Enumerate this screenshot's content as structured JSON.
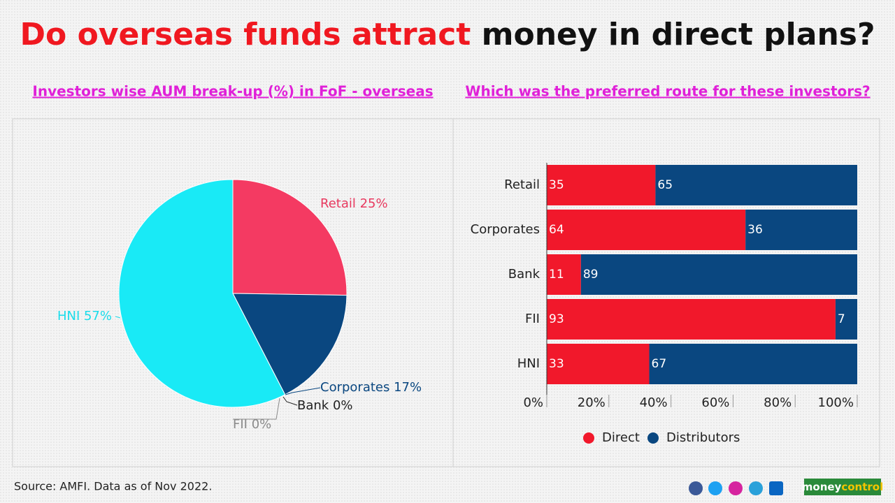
{
  "header": {
    "title_highlight": "Do overseas funds attract",
    "title_rest": "money in direct plans?"
  },
  "chart_data": [
    {
      "type": "pie",
      "subtitle": "Investors wise AUM break-up (%) in FoF - overseas",
      "categories": [
        "Retail",
        "Corporates",
        "Bank",
        "FII",
        "HNI"
      ],
      "values": [
        25,
        17,
        0,
        0,
        57
      ],
      "value_labels": [
        "25%",
        "17%",
        "0%",
        "0%",
        "57%"
      ],
      "colors": [
        "#f43a62",
        "#0a4780",
        "#222222",
        "#8a8a8a",
        "#19eaf6"
      ],
      "label_colors": [
        "#e8395f",
        "#0a4780",
        "#222222",
        "#8a8a8a",
        "#19dcea"
      ]
    },
    {
      "type": "bar",
      "orientation": "horizontal",
      "stacked": true,
      "subtitle": "Which was the preferred route for these investors?",
      "categories": [
        "Retail",
        "Corporates",
        "Bank",
        "FII",
        "HNI"
      ],
      "series": [
        {
          "name": "Direct",
          "color": "#f1182b",
          "values": [
            35,
            64,
            11,
            93,
            33
          ]
        },
        {
          "name": "Distributors",
          "color": "#0a4780",
          "values": [
            65,
            36,
            89,
            7,
            67
          ]
        }
      ],
      "xlim": [
        0,
        100
      ],
      "xticks": [
        {
          "value": 0,
          "label": "0%"
        },
        {
          "value": 20,
          "label": "20%"
        },
        {
          "value": 40,
          "label": "40%"
        },
        {
          "value": 60,
          "label": "60%"
        },
        {
          "value": 80,
          "label": "80%"
        },
        {
          "value": 100,
          "label": "100%"
        }
      ],
      "legend": "bottom"
    }
  ],
  "footer": {
    "source": "Source: AMFI. Data as of Nov 2022.",
    "brand_a": "money",
    "brand_b": "control"
  }
}
